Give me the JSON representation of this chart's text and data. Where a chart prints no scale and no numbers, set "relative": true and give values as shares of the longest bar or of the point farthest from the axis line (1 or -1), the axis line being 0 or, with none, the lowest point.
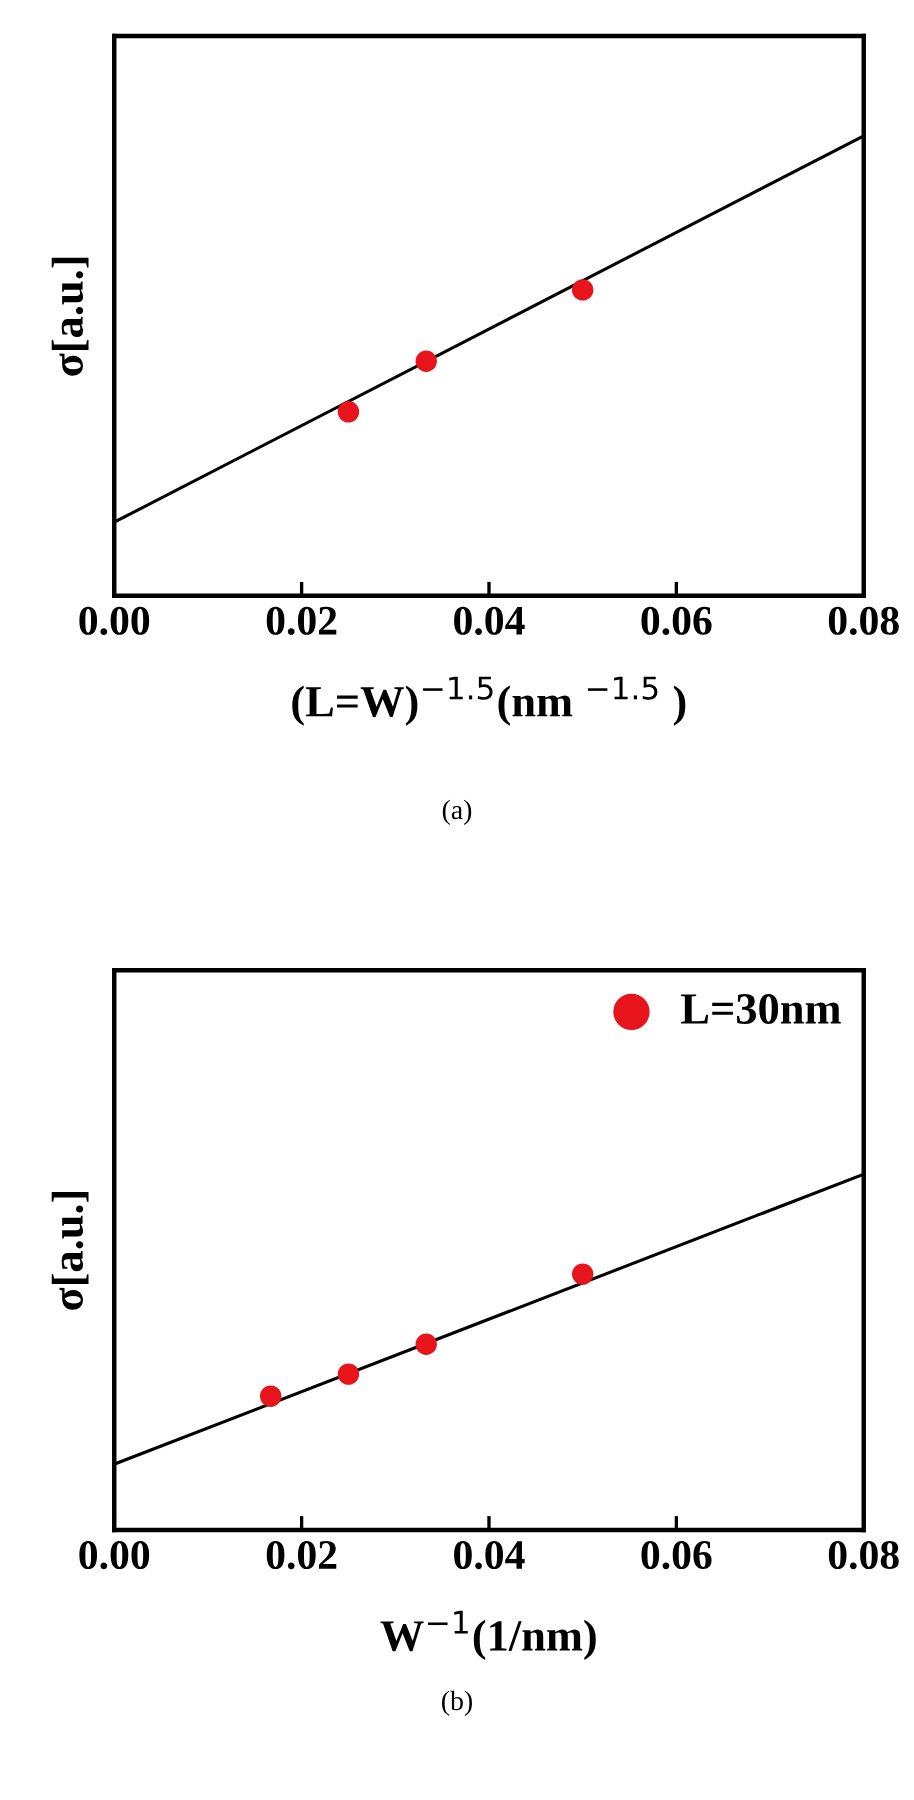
{
  "chart_data": [
    {
      "type": "scatter",
      "xlabel": "(L=W)$^{−1.5}$(nm $^{−1.5}$ )",
      "ylabel": "σ[a.u.]",
      "relative": true,
      "tick_labels": "x",
      "grid": false,
      "legend": false,
      "xlim": [
        0,
        0.08
      ],
      "xticks": [
        {
          "value": 0,
          "label": "0.00"
        },
        {
          "value": 0.02,
          "label": "0.02"
        },
        {
          "value": 0.04,
          "label": "0.04"
        },
        {
          "value": 0.06,
          "label": "0.06"
        },
        {
          "value": 0.08,
          "label": "0.08"
        }
      ],
      "annotations": [
        "(a)"
      ],
      "series": [
        {
          "color": "#e8141c",
          "marker": "circle",
          "x": [
            0.025,
            0.0333,
            0.05
          ],
          "values": [
            0.4,
            0.51,
            0.665
          ]
        },
        {
          "type": "line",
          "color": "#000000",
          "marker": "none",
          "line_style": "solid",
          "x": [
            0,
            0.08
          ],
          "values": [
            0.16,
            1
          ]
        }
      ]
    },
    {
      "type": "scatter",
      "xlabel": "W$^{−1}$(1/nm)",
      "ylabel": "σ[a.u.]",
      "relative": true,
      "tick_labels": "x",
      "grid": false,
      "legend": "top right",
      "xlim": [
        0,
        0.08
      ],
      "xticks": [
        {
          "value": 0,
          "label": "0.00"
        },
        {
          "value": 0.02,
          "label": "0.02"
        },
        {
          "value": 0.04,
          "label": "0.04"
        },
        {
          "value": 0.06,
          "label": "0.06"
        },
        {
          "value": 0.08,
          "label": "0.08"
        }
      ],
      "annotations": [
        "(b)"
      ],
      "series": [
        {
          "name": "L=30nm",
          "color": "#e8141c",
          "marker": "circle",
          "x": [
            0.0167,
            0.025,
            0.0333,
            0.05
          ],
          "values": [
            0.376,
            0.438,
            0.522,
            0.719
          ]
        },
        {
          "type": "line",
          "color": "#000000",
          "marker": "none",
          "line_style": "solid",
          "x": [
            0,
            0.08
          ],
          "values": [
            0.185,
            1
          ]
        }
      ]
    }
  ]
}
